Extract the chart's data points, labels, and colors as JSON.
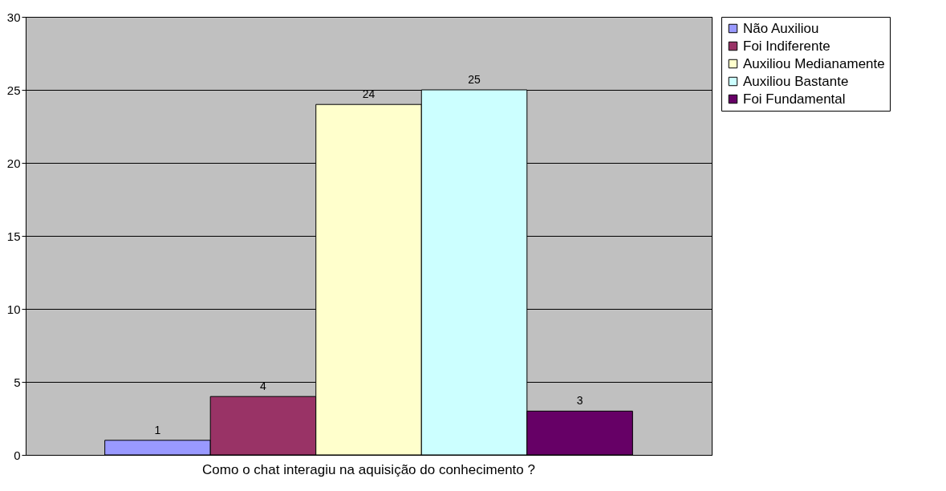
{
  "chart_data": {
    "type": "bar",
    "categories": [
      "Como o chat interagiu na aquisição do conhecimento ?"
    ],
    "series": [
      {
        "name": "Não Auxiliou",
        "color": "#9999ff",
        "values": [
          1
        ]
      },
      {
        "name": "Foi Indiferente",
        "color": "#993366",
        "values": [
          4
        ]
      },
      {
        "name": "Auxiliou Medianamente",
        "color": "#ffffcc",
        "values": [
          24
        ]
      },
      {
        "name": "Auxiliou Bastante",
        "color": "#ccffff",
        "values": [
          25
        ]
      },
      {
        "name": "Foi Fundamental",
        "color": "#660066",
        "values": [
          3
        ]
      }
    ],
    "ylim": [
      0,
      30
    ],
    "yticks": [
      0,
      5,
      10,
      15,
      20,
      25,
      30
    ],
    "grid": "y",
    "legend": "right",
    "data_labels": true
  }
}
